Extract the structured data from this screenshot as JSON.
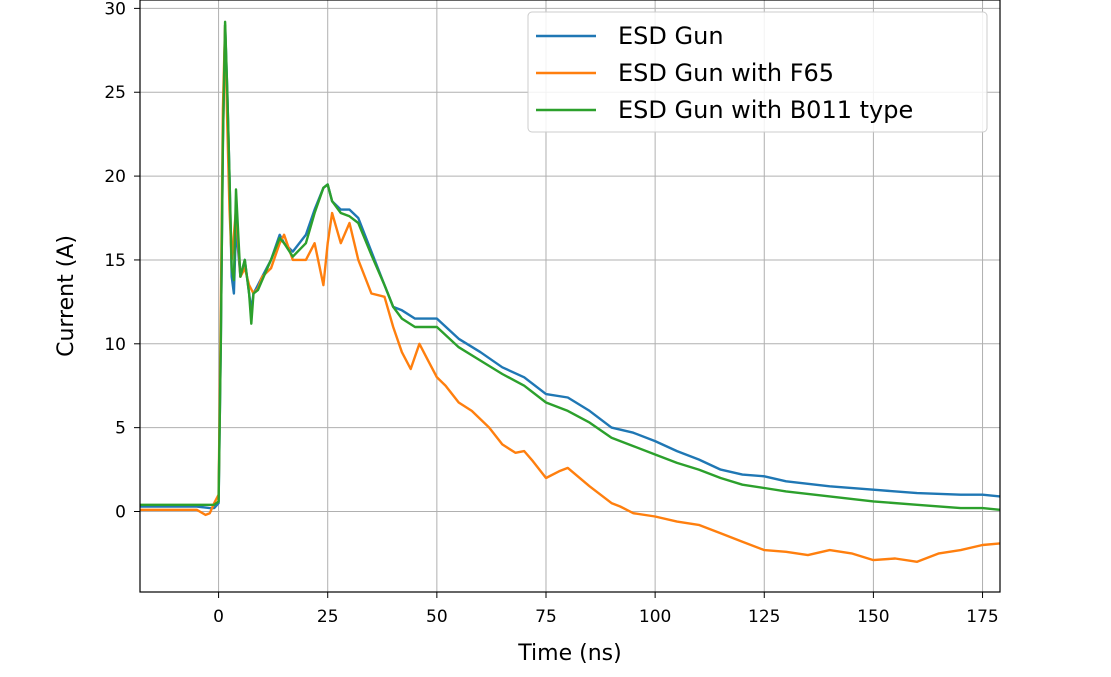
{
  "chart_data": {
    "type": "line",
    "title": "",
    "xlabel": "Time (ns)",
    "ylabel": "Current (A)",
    "xlim": [
      -18,
      179
    ],
    "ylim": [
      -4.8,
      30.5
    ],
    "xticks": [
      0,
      25,
      50,
      75,
      100,
      125,
      150,
      175
    ],
    "yticks": [
      0,
      5,
      10,
      15,
      20,
      25,
      30
    ],
    "grid": true,
    "legend_position": "top-right",
    "series": [
      {
        "name": "ESD Gun",
        "color": "#1f77b4",
        "x": [
          -18,
          -5,
          -2,
          -1,
          0,
          0.5,
          1,
          1.5,
          2,
          2.5,
          3,
          3.5,
          4,
          5,
          6,
          7,
          7.5,
          8,
          9,
          10,
          12,
          14,
          15,
          17,
          20,
          22,
          24,
          25,
          26,
          28,
          30,
          32,
          35,
          38,
          40,
          42,
          45,
          48,
          50,
          55,
          60,
          65,
          70,
          75,
          80,
          85,
          90,
          95,
          100,
          105,
          110,
          115,
          120,
          125,
          130,
          140,
          150,
          160,
          170,
          175,
          179
        ],
        "y": [
          0.3,
          0.3,
          0.2,
          0.2,
          0.5,
          10,
          22,
          29,
          25,
          20,
          14,
          13,
          17,
          14,
          15,
          13,
          12,
          13,
          13.5,
          14,
          15,
          16.5,
          16,
          15.5,
          16.5,
          18,
          19.3,
          19.5,
          18.5,
          18,
          18,
          17.5,
          15.5,
          13.5,
          12.2,
          12,
          11.5,
          11.5,
          11.5,
          10.3,
          9.5,
          8.6,
          8.0,
          7.0,
          6.8,
          6.0,
          5.0,
          4.7,
          4.2,
          3.6,
          3.1,
          2.5,
          2.2,
          2.1,
          1.8,
          1.5,
          1.3,
          1.1,
          1.0,
          1.0,
          0.9
        ]
      },
      {
        "name": "ESD Gun with F65",
        "color": "#ff7f0e",
        "x": [
          -18,
          -5,
          -3,
          -2,
          -1,
          0,
          0.5,
          1,
          1.5,
          2,
          2.5,
          3,
          4,
          5,
          6,
          7,
          8,
          9,
          10,
          12,
          14,
          15,
          17,
          20,
          22,
          24,
          25,
          26,
          28,
          30,
          32,
          35,
          38,
          40,
          42,
          44,
          46,
          48,
          50,
          52,
          55,
          58,
          60,
          62,
          65,
          68,
          70,
          72,
          75,
          78,
          80,
          85,
          90,
          92,
          95,
          100,
          105,
          110,
          115,
          120,
          125,
          130,
          135,
          140,
          145,
          150,
          155,
          160,
          165,
          170,
          175,
          179
        ],
        "y": [
          0.1,
          0.1,
          -0.2,
          -0.1,
          0.5,
          1.0,
          12,
          24,
          29,
          23,
          18,
          15,
          18,
          14,
          14.5,
          13.5,
          13,
          13.3,
          14,
          14.5,
          16,
          16.5,
          15,
          15,
          16,
          13.5,
          16,
          17.8,
          16,
          17.2,
          15,
          13,
          12.8,
          11,
          9.5,
          8.5,
          10,
          9,
          8,
          7.5,
          6.5,
          6,
          5.5,
          5,
          4,
          3.5,
          3.6,
          3,
          2,
          2.4,
          2.6,
          1.5,
          0.5,
          0.3,
          -0.1,
          -0.3,
          -0.6,
          -0.8,
          -1.3,
          -1.8,
          -2.3,
          -2.4,
          -2.6,
          -2.3,
          -2.5,
          -2.9,
          -2.8,
          -3.0,
          -2.5,
          -2.3,
          -2.0,
          -1.9
        ]
      },
      {
        "name": "ESD Gun with B011 type",
        "color": "#2ca02c",
        "x": [
          -18,
          -5,
          -2,
          -1,
          0,
          0.5,
          1,
          1.5,
          2,
          2.5,
          3,
          3.5,
          4,
          5,
          6,
          7,
          7.5,
          8,
          9,
          10,
          12,
          14,
          15,
          17,
          20,
          22,
          24,
          25,
          26,
          28,
          30,
          32,
          35,
          38,
          40,
          42,
          45,
          48,
          50,
          55,
          60,
          65,
          70,
          75,
          80,
          85,
          90,
          95,
          100,
          105,
          110,
          115,
          120,
          125,
          130,
          140,
          150,
          160,
          170,
          175,
          179
        ],
        "y": [
          0.4,
          0.4,
          0.4,
          0.4,
          0.6,
          10,
          22,
          29.2,
          25,
          20,
          14.5,
          13.8,
          19.2,
          14,
          15,
          13,
          11.2,
          13,
          13.2,
          13.8,
          15,
          16.3,
          16,
          15.2,
          16,
          17.8,
          19.3,
          19.5,
          18.5,
          17.8,
          17.6,
          17.2,
          15.3,
          13.5,
          12.2,
          11.5,
          11,
          11,
          11,
          9.8,
          9.0,
          8.2,
          7.5,
          6.5,
          6.0,
          5.3,
          4.4,
          3.9,
          3.4,
          2.9,
          2.5,
          2.0,
          1.6,
          1.4,
          1.2,
          0.9,
          0.6,
          0.4,
          0.2,
          0.2,
          0.1
        ]
      }
    ]
  }
}
